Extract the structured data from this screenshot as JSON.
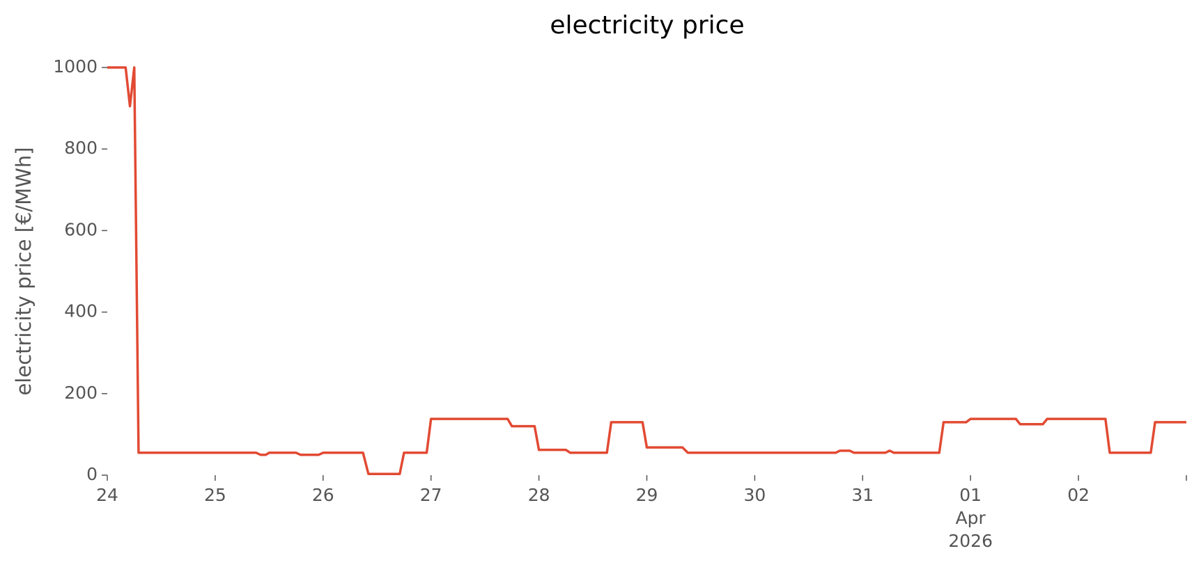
{
  "chart_data": {
    "type": "line",
    "title": "electricity price",
    "y_label": "electricity price [€/MWh]",
    "x_month_label": "Apr",
    "x_year_label": "2026",
    "x": [
      0,
      0.17,
      0.21,
      0.25,
      0.29,
      1.38,
      1.42,
      1.47,
      1.5,
      1.75,
      1.79,
      1.96,
      2.0,
      2.37,
      2.42,
      2.71,
      2.75,
      2.96,
      3.0,
      3.71,
      3.75,
      3.96,
      4.0,
      4.25,
      4.29,
      4.63,
      4.67,
      4.96,
      5.0,
      5.33,
      5.38,
      6.75,
      6.79,
      6.88,
      6.92,
      7.21,
      7.25,
      7.29,
      7.71,
      7.75,
      7.96,
      8.0,
      8.42,
      8.46,
      8.67,
      8.71,
      9.25,
      9.29,
      9.67,
      9.71,
      10
    ],
    "series": [
      {
        "name": "electricity price",
        "color": "#e24a33",
        "values": [
          1000,
          1000,
          905,
          1000,
          55,
          55,
          50,
          50,
          55,
          55,
          50,
          50,
          55,
          55,
          3,
          3,
          55,
          55,
          138,
          138,
          120,
          120,
          62,
          62,
          55,
          55,
          130,
          130,
          68,
          68,
          55,
          55,
          60,
          60,
          55,
          55,
          60,
          55,
          55,
          130,
          130,
          138,
          138,
          125,
          125,
          138,
          138,
          55,
          55,
          130,
          130
        ]
      }
    ],
    "xlim": [
      0,
      10
    ],
    "ylim": [
      0,
      1000
    ],
    "xticks": [
      {
        "value": 0,
        "label": "24"
      },
      {
        "value": 1,
        "label": "25"
      },
      {
        "value": 2,
        "label": "26"
      },
      {
        "value": 3,
        "label": "27"
      },
      {
        "value": 4,
        "label": "28"
      },
      {
        "value": 5,
        "label": "29"
      },
      {
        "value": 6,
        "label": "30"
      },
      {
        "value": 7,
        "label": "31"
      },
      {
        "value": 8,
        "label": "01"
      },
      {
        "value": 9,
        "label": "02"
      },
      {
        "value": 10,
        "label": null
      }
    ],
    "yticks": [
      0,
      200,
      400,
      600,
      800,
      1000
    ],
    "grid": false
  }
}
